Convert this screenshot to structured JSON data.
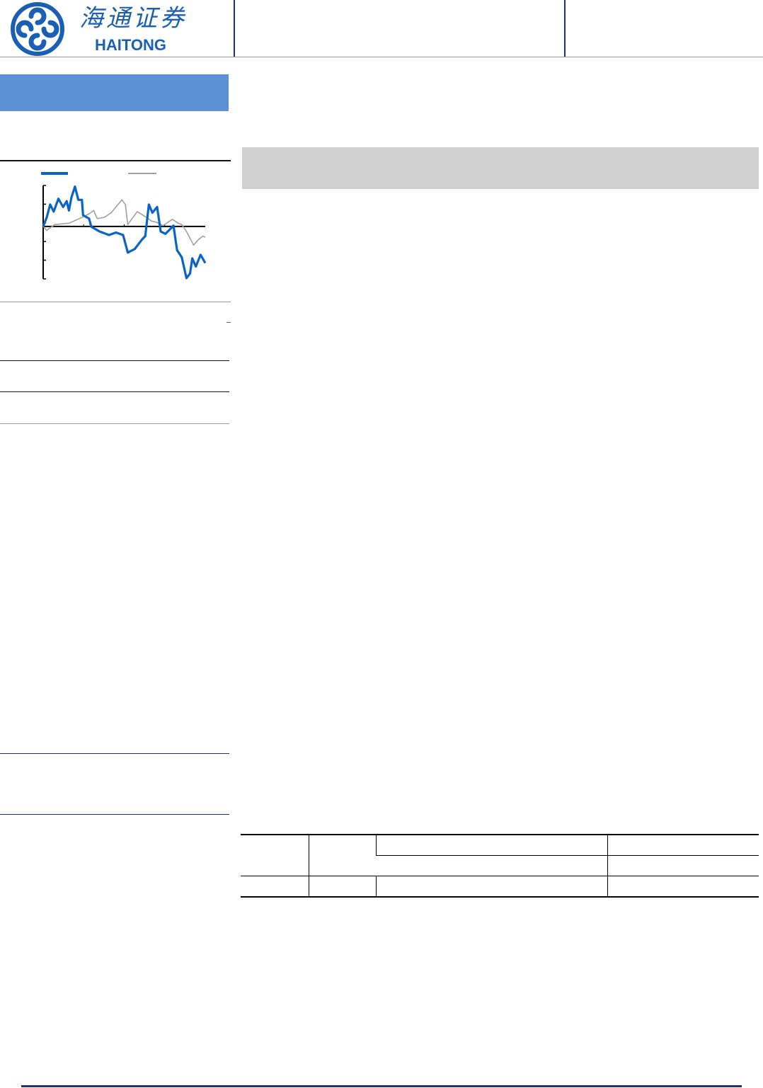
{
  "header": {
    "brand_cn": "海通证券",
    "brand_en": "HAITONG",
    "brand_color": "#1a5fb4"
  },
  "colors": {
    "section_bar": "#5b8fd6",
    "summary_box": "#d0d0d0",
    "stock_line": "#0a64c8",
    "index_line": "#a0a0a0"
  },
  "chart_data": {
    "type": "line",
    "title": "",
    "xlabel": "",
    "ylabel": "",
    "ylim": [
      0,
      5
    ],
    "xlim": [
      0,
      100
    ],
    "baseline": 2.81,
    "grid": false,
    "legend": "top",
    "series": [
      {
        "color": "#0a64c8",
        "x": [
          0,
          2.2,
          4.3,
          6.5,
          9.4,
          12.3,
          14.5,
          15.9,
          17.4,
          19.6,
          21.7,
          23.9,
          24.6,
          28.3,
          29.7,
          34.8,
          40.6,
          44.9,
          49.3,
          52.2,
          56.5,
          60.9,
          63,
          65.2,
          67.4,
          70.3,
          72.5,
          75.4,
          78.3,
          80.4,
          82.6,
          85.5,
          88.4,
          90.6,
          92,
          94.2,
          97.1,
          100
        ],
        "y": [
          2.81,
          3.29,
          3.98,
          3.6,
          4.29,
          3.85,
          4.16,
          3.66,
          4.35,
          4.94,
          4.23,
          4.23,
          3.41,
          3.23,
          2.79,
          2.54,
          2.35,
          2.48,
          2.35,
          1.41,
          1.6,
          2.1,
          2.29,
          3.98,
          3.54,
          3.85,
          2.54,
          2.41,
          2.66,
          2.85,
          1.54,
          1.16,
          0.04,
          0.29,
          1.1,
          0.66,
          1.29,
          0.85
        ]
      },
      {
        "color": "#a0a0a0",
        "x": [
          0,
          2.2,
          7.2,
          15.9,
          23.2,
          28.3,
          31.2,
          33.3,
          37.7,
          42,
          44.9,
          48.6,
          50.7,
          52.2,
          58,
          63.8,
          66.7,
          69.6,
          73.9,
          79.7,
          83.3,
          85.5,
          88.4,
          92.8,
          95.7,
          98.6,
          100
        ],
        "y": [
          2.81,
          2.6,
          2.91,
          2.98,
          3.26,
          3.48,
          3.66,
          3.23,
          3.29,
          3.54,
          3.85,
          4.23,
          3.98,
          2.91,
          3.6,
          3.29,
          3.1,
          3.04,
          2.85,
          3.19,
          2.98,
          2.91,
          2.54,
          1.81,
          2.1,
          2.29,
          2.23
        ]
      }
    ]
  }
}
